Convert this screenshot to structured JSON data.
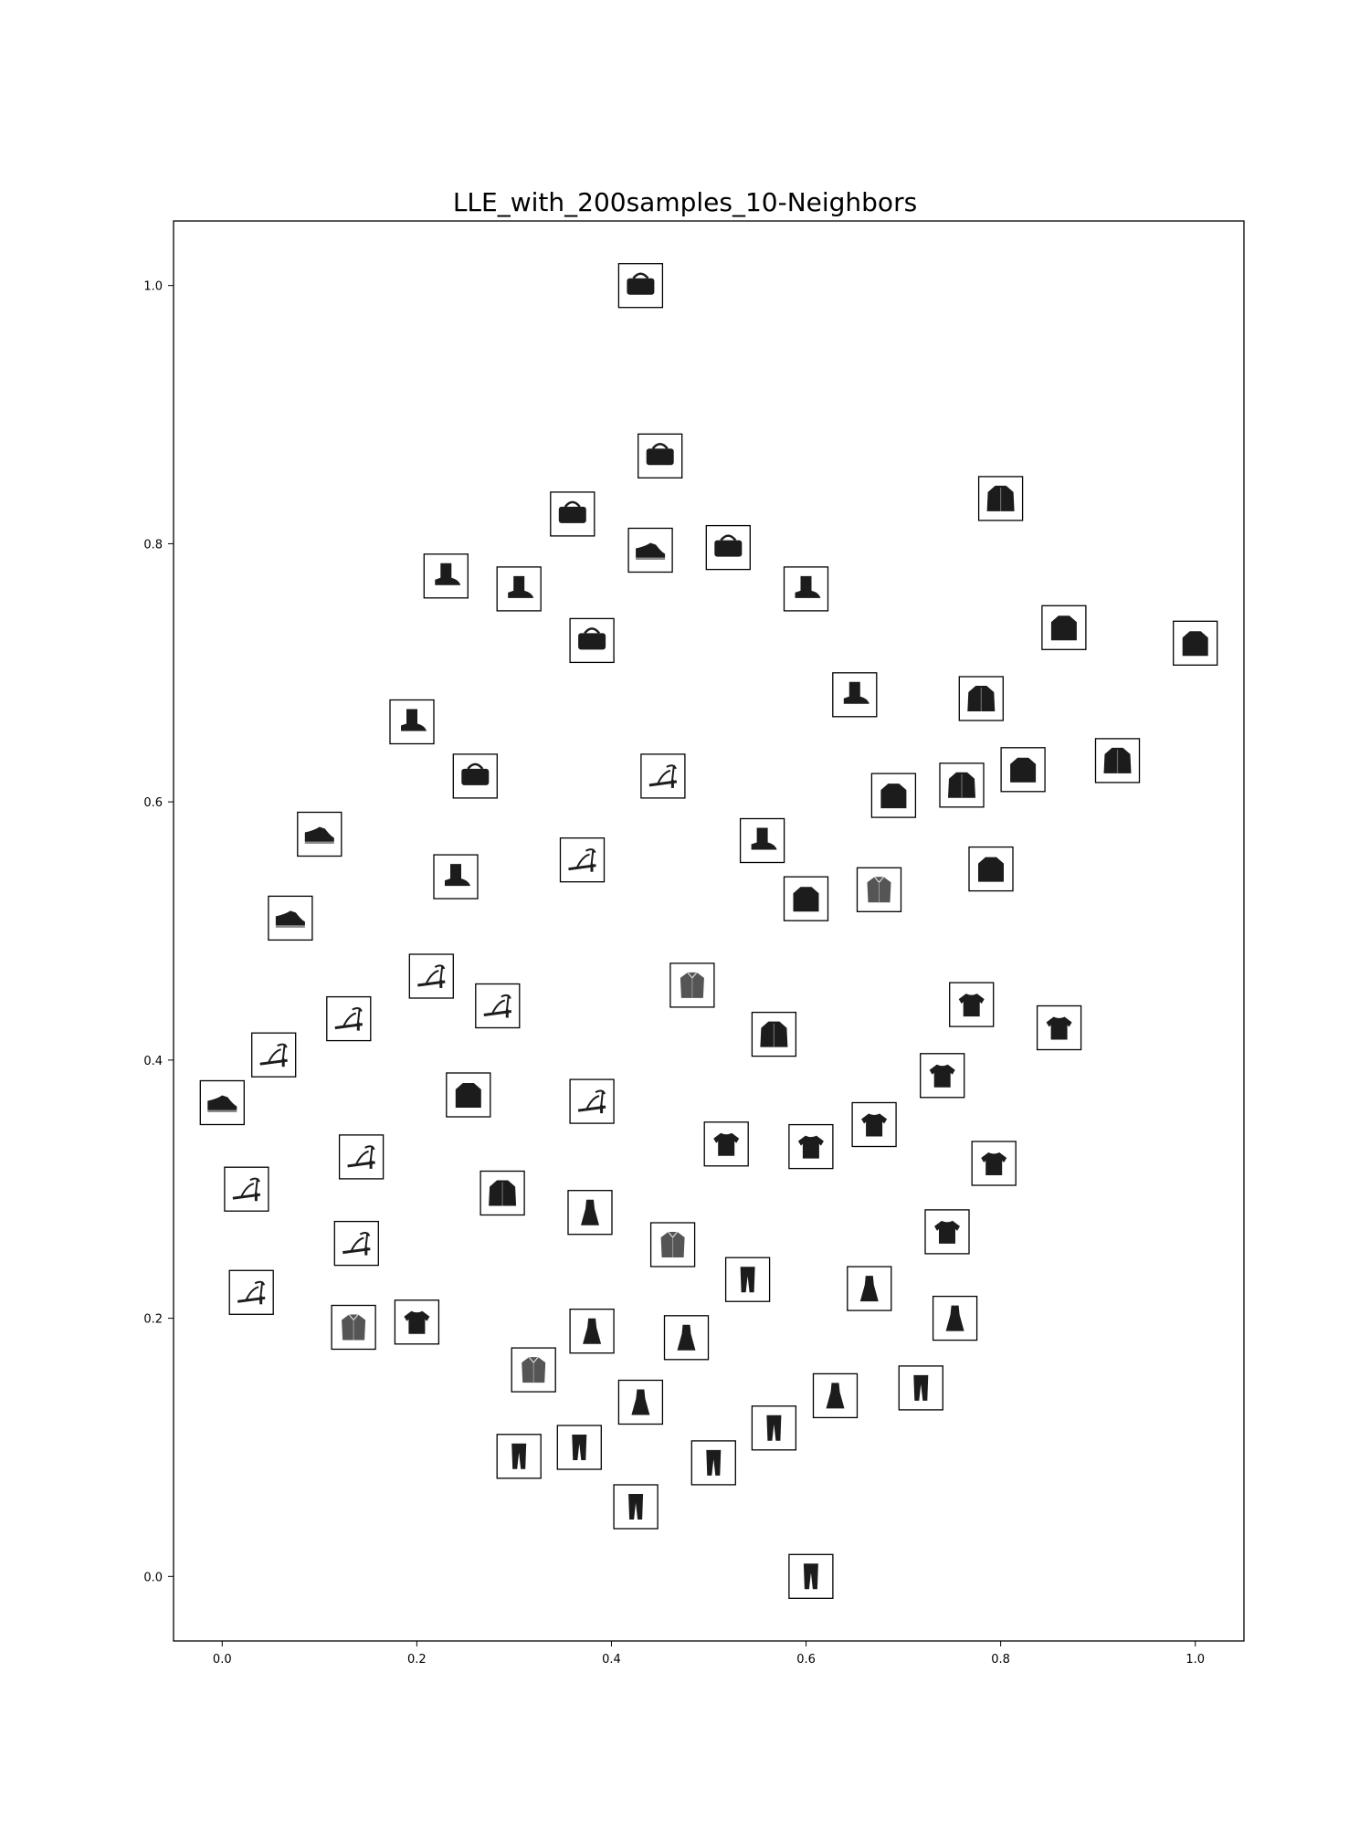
{
  "chart_data": {
    "type": "scatter",
    "title": "LLE_with_200samples_10-Neighbors",
    "xlabel": "",
    "ylabel": "",
    "xlim": [
      -0.05,
      1.05
    ],
    "ylim": [
      -0.05,
      1.05
    ],
    "xticks": [
      0.0,
      0.2,
      0.4,
      0.6,
      0.8,
      1.0
    ],
    "yticks": [
      0.0,
      0.2,
      0.4,
      0.6,
      0.8,
      1.0
    ],
    "xtick_labels": [
      "0.0",
      "0.2",
      "0.4",
      "0.6",
      "0.8",
      "1.0"
    ],
    "ytick_labels": [
      "0.0",
      "0.2",
      "0.4",
      "0.6",
      "0.8",
      "1.0"
    ],
    "grid": false,
    "marker": "image-thumbnail",
    "points": [
      {
        "x": 0.43,
        "y": 1.0,
        "item": "bag"
      },
      {
        "x": 0.45,
        "y": 0.868,
        "item": "bag"
      },
      {
        "x": 0.36,
        "y": 0.823,
        "item": "bag"
      },
      {
        "x": 0.44,
        "y": 0.795,
        "item": "sneaker"
      },
      {
        "x": 0.52,
        "y": 0.797,
        "item": "bag"
      },
      {
        "x": 0.8,
        "y": 0.835,
        "item": "coat"
      },
      {
        "x": 0.23,
        "y": 0.775,
        "item": "ankle-boot"
      },
      {
        "x": 0.305,
        "y": 0.765,
        "item": "ankle-boot"
      },
      {
        "x": 0.6,
        "y": 0.765,
        "item": "ankle-boot"
      },
      {
        "x": 0.38,
        "y": 0.725,
        "item": "bag"
      },
      {
        "x": 0.865,
        "y": 0.735,
        "item": "pullover"
      },
      {
        "x": 1.0,
        "y": 0.723,
        "item": "pullover"
      },
      {
        "x": 0.195,
        "y": 0.662,
        "item": "ankle-boot"
      },
      {
        "x": 0.65,
        "y": 0.683,
        "item": "ankle-boot"
      },
      {
        "x": 0.78,
        "y": 0.68,
        "item": "coat"
      },
      {
        "x": 0.26,
        "y": 0.62,
        "item": "bag"
      },
      {
        "x": 0.453,
        "y": 0.62,
        "item": "sandal"
      },
      {
        "x": 0.69,
        "y": 0.605,
        "item": "pullover"
      },
      {
        "x": 0.76,
        "y": 0.613,
        "item": "coat"
      },
      {
        "x": 0.823,
        "y": 0.625,
        "item": "pullover"
      },
      {
        "x": 0.92,
        "y": 0.632,
        "item": "coat"
      },
      {
        "x": 0.1,
        "y": 0.575,
        "item": "sneaker"
      },
      {
        "x": 0.555,
        "y": 0.57,
        "item": "ankle-boot"
      },
      {
        "x": 0.37,
        "y": 0.555,
        "item": "sandal"
      },
      {
        "x": 0.24,
        "y": 0.542,
        "item": "ankle-boot"
      },
      {
        "x": 0.79,
        "y": 0.548,
        "item": "pullover"
      },
      {
        "x": 0.6,
        "y": 0.525,
        "item": "pullover"
      },
      {
        "x": 0.675,
        "y": 0.532,
        "item": "shirt"
      },
      {
        "x": 0.07,
        "y": 0.51,
        "item": "sneaker"
      },
      {
        "x": 0.215,
        "y": 0.465,
        "item": "sandal"
      },
      {
        "x": 0.483,
        "y": 0.458,
        "item": "shirt"
      },
      {
        "x": 0.283,
        "y": 0.442,
        "item": "sandal"
      },
      {
        "x": 0.77,
        "y": 0.443,
        "item": "t-shirt"
      },
      {
        "x": 0.13,
        "y": 0.432,
        "item": "sandal"
      },
      {
        "x": 0.567,
        "y": 0.42,
        "item": "coat"
      },
      {
        "x": 0.86,
        "y": 0.425,
        "item": "t-shirt"
      },
      {
        "x": 0.053,
        "y": 0.404,
        "item": "sandal"
      },
      {
        "x": 0.74,
        "y": 0.388,
        "item": "t-shirt"
      },
      {
        "x": 0.0,
        "y": 0.367,
        "item": "sneaker"
      },
      {
        "x": 0.253,
        "y": 0.373,
        "item": "pullover"
      },
      {
        "x": 0.38,
        "y": 0.368,
        "item": "sandal"
      },
      {
        "x": 0.67,
        "y": 0.35,
        "item": "t-shirt"
      },
      {
        "x": 0.518,
        "y": 0.335,
        "item": "t-shirt"
      },
      {
        "x": 0.605,
        "y": 0.333,
        "item": "t-shirt"
      },
      {
        "x": 0.793,
        "y": 0.32,
        "item": "t-shirt"
      },
      {
        "x": 0.143,
        "y": 0.325,
        "item": "sandal"
      },
      {
        "x": 0.025,
        "y": 0.3,
        "item": "sandal"
      },
      {
        "x": 0.288,
        "y": 0.297,
        "item": "coat"
      },
      {
        "x": 0.378,
        "y": 0.282,
        "item": "dress"
      },
      {
        "x": 0.745,
        "y": 0.267,
        "item": "t-shirt"
      },
      {
        "x": 0.138,
        "y": 0.258,
        "item": "sandal"
      },
      {
        "x": 0.463,
        "y": 0.257,
        "item": "shirt"
      },
      {
        "x": 0.54,
        "y": 0.23,
        "item": "trouser"
      },
      {
        "x": 0.665,
        "y": 0.223,
        "item": "dress"
      },
      {
        "x": 0.03,
        "y": 0.22,
        "item": "sandal"
      },
      {
        "x": 0.753,
        "y": 0.2,
        "item": "dress"
      },
      {
        "x": 0.135,
        "y": 0.193,
        "item": "shirt"
      },
      {
        "x": 0.2,
        "y": 0.197,
        "item": "t-shirt"
      },
      {
        "x": 0.38,
        "y": 0.19,
        "item": "dress"
      },
      {
        "x": 0.477,
        "y": 0.185,
        "item": "dress"
      },
      {
        "x": 0.32,
        "y": 0.16,
        "item": "shirt"
      },
      {
        "x": 0.43,
        "y": 0.135,
        "item": "dress"
      },
      {
        "x": 0.63,
        "y": 0.14,
        "item": "dress"
      },
      {
        "x": 0.718,
        "y": 0.146,
        "item": "trouser"
      },
      {
        "x": 0.567,
        "y": 0.115,
        "item": "trouser"
      },
      {
        "x": 0.305,
        "y": 0.093,
        "item": "trouser"
      },
      {
        "x": 0.367,
        "y": 0.1,
        "item": "trouser"
      },
      {
        "x": 0.505,
        "y": 0.088,
        "item": "trouser"
      },
      {
        "x": 0.425,
        "y": 0.054,
        "item": "trouser"
      },
      {
        "x": 0.605,
        "y": 0.0,
        "item": "trouser"
      }
    ]
  }
}
